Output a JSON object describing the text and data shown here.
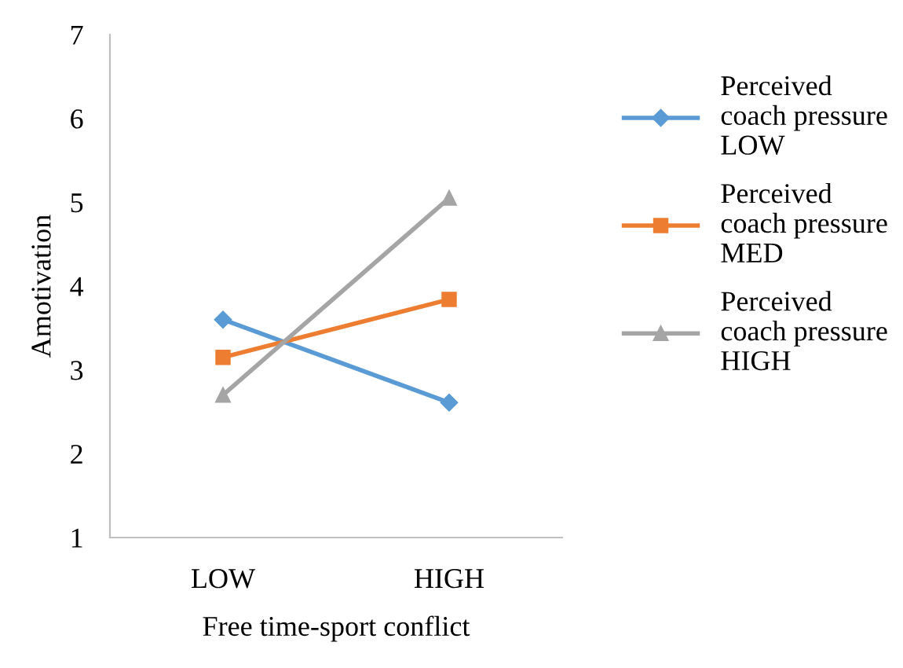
{
  "chart_data": {
    "type": "line",
    "xlabel": "Free time-sport conflict",
    "ylabel": "Amotivation",
    "categories": [
      "LOW",
      "HIGH"
    ],
    "series": [
      {
        "name": "Perceived\ncoach pressure\nLOW",
        "color": "#5b9bd5",
        "marker": "diamond",
        "values": [
          3.6,
          2.61
        ]
      },
      {
        "name": "Perceived\ncoach pressure\nMED",
        "color": "#ed7d31",
        "marker": "square",
        "values": [
          3.15,
          3.84
        ]
      },
      {
        "name": "Perceived\ncoach pressure\nHIGH",
        "color": "#a5a5a5",
        "marker": "triangle",
        "values": [
          2.7,
          5.05
        ]
      }
    ],
    "ylim": [
      1,
      7
    ],
    "yticks": [
      1,
      2,
      3,
      4,
      5,
      6,
      7
    ],
    "grid": false,
    "legend": "right"
  }
}
